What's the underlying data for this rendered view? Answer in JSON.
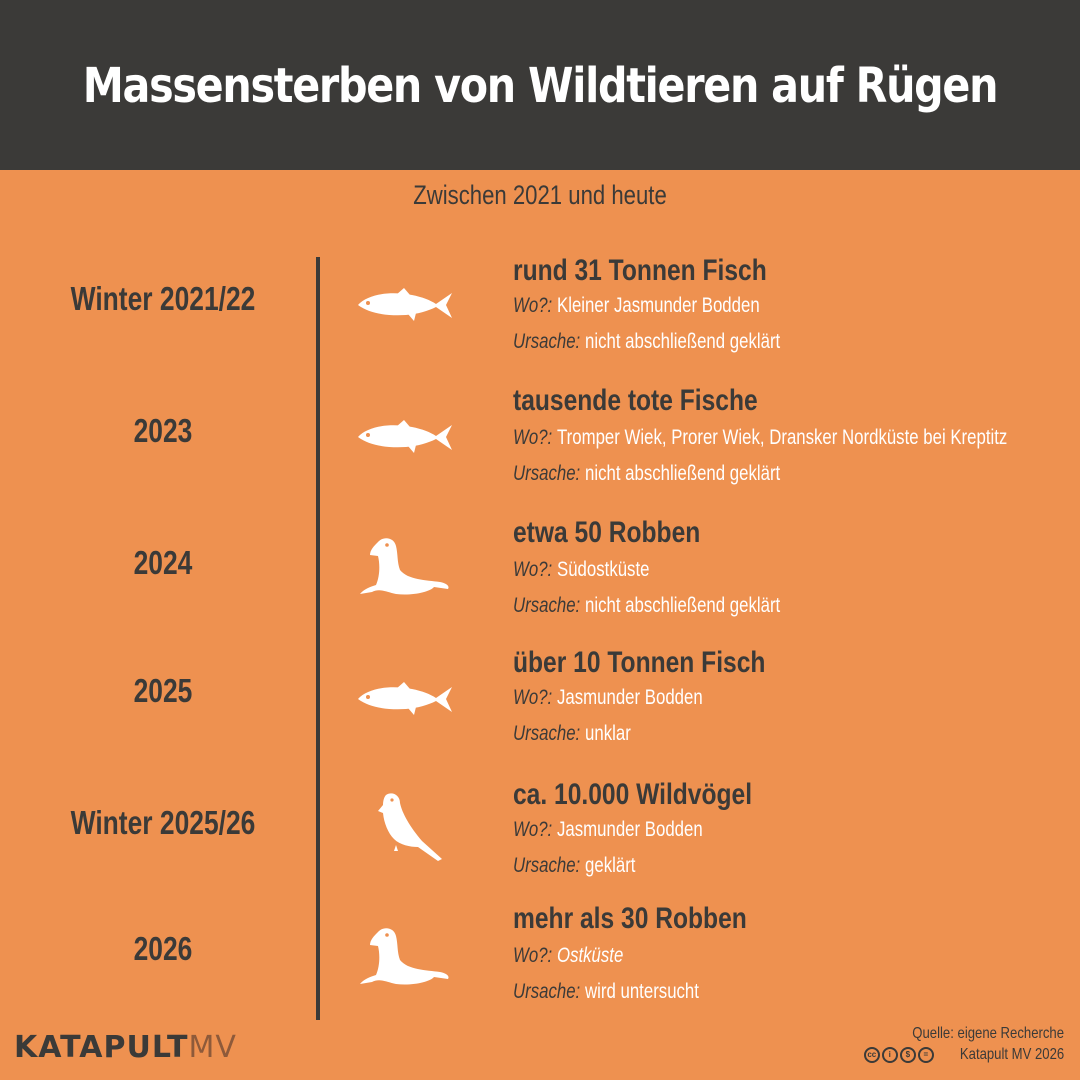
{
  "title": "Massensterben von Wildtieren auf Rügen",
  "subtitle": "Zwischen 2021 und heute",
  "labels": {
    "where": "Wo?:",
    "cause": "Ursache:"
  },
  "colors": {
    "background": "#ee9150",
    "header": "#3b3a38",
    "text_dark": "#3b3a38",
    "text_light": "#ffffff"
  },
  "events": [
    {
      "year": "Winter 2021/22",
      "icon": "fish-icon",
      "title": "rund 31 Tonnen Fisch",
      "where": "Kleiner Jasmunder Bodden",
      "cause": "nicht abschließend geklärt"
    },
    {
      "year": "2023",
      "icon": "fish-icon",
      "title": "tausende tote Fische",
      "where": "Tromper Wiek, Prorer Wiek, Dransker Nordküste bei Kreptitz",
      "cause": "nicht abschließend geklärt"
    },
    {
      "year": "2024",
      "icon": "seal-icon",
      "title": "etwa 50 Robben",
      "where": "Südostküste",
      "cause": "nicht abschließend geklärt"
    },
    {
      "year": "2025",
      "icon": "fish-icon",
      "title": "über 10 Tonnen Fisch",
      "where": "Jasmunder Bodden",
      "cause": "unklar"
    },
    {
      "year": "Winter 2025/26",
      "icon": "bird-icon",
      "title": "ca. 10.000 Wildvögel",
      "where": "Jasmunder Bodden",
      "cause": "geklärt"
    },
    {
      "year": "2026",
      "icon": "seal-icon",
      "title": "mehr als 30 Robben",
      "where": "Ostküste",
      "cause": "wird untersucht"
    }
  ],
  "footer": {
    "logo_main": "KATAPULT",
    "logo_suffix": "MV",
    "source": "Quelle: eigene Recherche",
    "copyright": "Katapult MV 2026",
    "license_icon": "cc-by-nc-nd-icon"
  }
}
